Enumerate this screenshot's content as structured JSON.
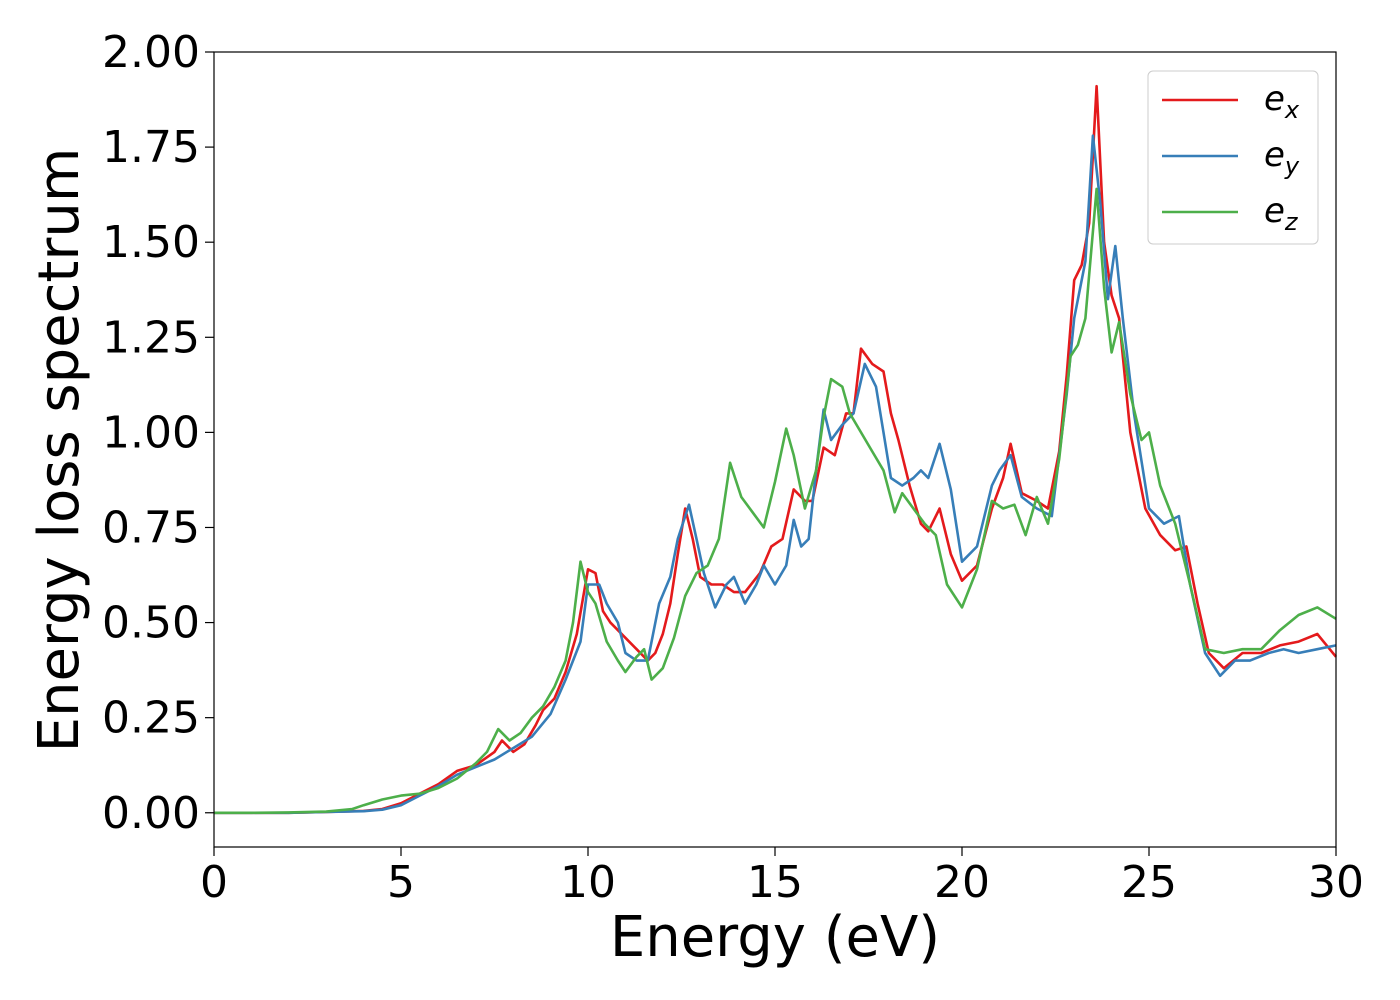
{
  "chart_data": {
    "type": "line",
    "xlabel": "Energy (eV)",
    "ylabel": "Energy loss spectrum",
    "xlim": [
      0,
      30
    ],
    "ylim": [
      -0.09,
      2.0
    ],
    "xticks": [
      "0",
      "5",
      "10",
      "15",
      "20",
      "25",
      "30"
    ],
    "yticks": [
      "0.00",
      "0.25",
      "0.50",
      "0.75",
      "1.00",
      "1.25",
      "1.50",
      "1.75",
      "2.00"
    ],
    "grid": false,
    "legend_position": "top-right",
    "series": [
      {
        "name": "e",
        "subscript": "x",
        "color": "#e41a1c",
        "points": [
          [
            0,
            0
          ],
          [
            1,
            0
          ],
          [
            2,
            0
          ],
          [
            3,
            0.002
          ],
          [
            4,
            0.005
          ],
          [
            4.5,
            0.01
          ],
          [
            5,
            0.025
          ],
          [
            5.5,
            0.05
          ],
          [
            6,
            0.075
          ],
          [
            6.5,
            0.11
          ],
          [
            7,
            0.125
          ],
          [
            7.5,
            0.16
          ],
          [
            7.7,
            0.19
          ],
          [
            8,
            0.16
          ],
          [
            8.3,
            0.18
          ],
          [
            8.6,
            0.23
          ],
          [
            8.8,
            0.27
          ],
          [
            9.1,
            0.3
          ],
          [
            9.4,
            0.37
          ],
          [
            9.7,
            0.47
          ],
          [
            10,
            0.64
          ],
          [
            10.2,
            0.63
          ],
          [
            10.4,
            0.53
          ],
          [
            10.6,
            0.5
          ],
          [
            10.8,
            0.48
          ],
          [
            11,
            0.46
          ],
          [
            11.3,
            0.43
          ],
          [
            11.6,
            0.4
          ],
          [
            11.8,
            0.42
          ],
          [
            12,
            0.47
          ],
          [
            12.2,
            0.55
          ],
          [
            12.4,
            0.68
          ],
          [
            12.6,
            0.8
          ],
          [
            12.8,
            0.72
          ],
          [
            13,
            0.62
          ],
          [
            13.3,
            0.6
          ],
          [
            13.6,
            0.6
          ],
          [
            13.9,
            0.58
          ],
          [
            14.2,
            0.58
          ],
          [
            14.6,
            0.63
          ],
          [
            14.9,
            0.7
          ],
          [
            15.2,
            0.72
          ],
          [
            15.5,
            0.85
          ],
          [
            15.8,
            0.82
          ],
          [
            16,
            0.82
          ],
          [
            16.3,
            0.96
          ],
          [
            16.6,
            0.94
          ],
          [
            16.9,
            1.05
          ],
          [
            17.1,
            1.05
          ],
          [
            17.3,
            1.22
          ],
          [
            17.6,
            1.18
          ],
          [
            17.9,
            1.16
          ],
          [
            18.1,
            1.05
          ],
          [
            18.3,
            0.98
          ],
          [
            18.6,
            0.86
          ],
          [
            18.9,
            0.76
          ],
          [
            19.1,
            0.74
          ],
          [
            19.4,
            0.8
          ],
          [
            19.7,
            0.68
          ],
          [
            20,
            0.61
          ],
          [
            20.4,
            0.65
          ],
          [
            20.8,
            0.8
          ],
          [
            21.1,
            0.88
          ],
          [
            21.3,
            0.97
          ],
          [
            21.6,
            0.84
          ],
          [
            22,
            0.82
          ],
          [
            22.3,
            0.8
          ],
          [
            22.6,
            0.95
          ],
          [
            22.8,
            1.15
          ],
          [
            23,
            1.4
          ],
          [
            23.2,
            1.44
          ],
          [
            23.4,
            1.55
          ],
          [
            23.6,
            1.91
          ],
          [
            23.8,
            1.5
          ],
          [
            24,
            1.36
          ],
          [
            24.2,
            1.3
          ],
          [
            24.5,
            1.0
          ],
          [
            24.9,
            0.8
          ],
          [
            25.3,
            0.73
          ],
          [
            25.7,
            0.69
          ],
          [
            26,
            0.7
          ],
          [
            26.3,
            0.55
          ],
          [
            26.6,
            0.42
          ],
          [
            27,
            0.38
          ],
          [
            27.5,
            0.42
          ],
          [
            28,
            0.42
          ],
          [
            28.5,
            0.44
          ],
          [
            29,
            0.45
          ],
          [
            29.5,
            0.47
          ],
          [
            30,
            0.41
          ]
        ]
      },
      {
        "name": "e",
        "subscript": "y",
        "color": "#377eb8",
        "points": [
          [
            0,
            0
          ],
          [
            1,
            0
          ],
          [
            2,
            0
          ],
          [
            3,
            0.002
          ],
          [
            4,
            0.004
          ],
          [
            4.5,
            0.008
          ],
          [
            5,
            0.02
          ],
          [
            5.5,
            0.045
          ],
          [
            6,
            0.07
          ],
          [
            6.5,
            0.1
          ],
          [
            7,
            0.12
          ],
          [
            7.5,
            0.14
          ],
          [
            8,
            0.17
          ],
          [
            8.5,
            0.2
          ],
          [
            9,
            0.26
          ],
          [
            9.4,
            0.35
          ],
          [
            9.8,
            0.45
          ],
          [
            10,
            0.6
          ],
          [
            10.3,
            0.6
          ],
          [
            10.5,
            0.55
          ],
          [
            10.8,
            0.5
          ],
          [
            11,
            0.42
          ],
          [
            11.3,
            0.4
          ],
          [
            11.6,
            0.4
          ],
          [
            11.9,
            0.55
          ],
          [
            12.2,
            0.62
          ],
          [
            12.4,
            0.72
          ],
          [
            12.7,
            0.81
          ],
          [
            12.9,
            0.72
          ],
          [
            13.1,
            0.63
          ],
          [
            13.4,
            0.54
          ],
          [
            13.7,
            0.6
          ],
          [
            13.9,
            0.62
          ],
          [
            14.2,
            0.55
          ],
          [
            14.5,
            0.6
          ],
          [
            14.7,
            0.65
          ],
          [
            15,
            0.6
          ],
          [
            15.3,
            0.65
          ],
          [
            15.5,
            0.77
          ],
          [
            15.7,
            0.7
          ],
          [
            15.9,
            0.72
          ],
          [
            16.1,
            0.9
          ],
          [
            16.3,
            1.06
          ],
          [
            16.5,
            0.98
          ],
          [
            16.8,
            1.02
          ],
          [
            17.1,
            1.05
          ],
          [
            17.4,
            1.18
          ],
          [
            17.7,
            1.12
          ],
          [
            17.9,
            1.0
          ],
          [
            18.1,
            0.88
          ],
          [
            18.4,
            0.86
          ],
          [
            18.7,
            0.88
          ],
          [
            18.9,
            0.9
          ],
          [
            19.1,
            0.88
          ],
          [
            19.4,
            0.97
          ],
          [
            19.7,
            0.85
          ],
          [
            20,
            0.66
          ],
          [
            20.4,
            0.7
          ],
          [
            20.8,
            0.86
          ],
          [
            21,
            0.9
          ],
          [
            21.3,
            0.94
          ],
          [
            21.6,
            0.83
          ],
          [
            22,
            0.8
          ],
          [
            22.4,
            0.78
          ],
          [
            22.8,
            1.1
          ],
          [
            23,
            1.3
          ],
          [
            23.3,
            1.45
          ],
          [
            23.5,
            1.78
          ],
          [
            23.7,
            1.6
          ],
          [
            23.9,
            1.35
          ],
          [
            24.1,
            1.49
          ],
          [
            24.3,
            1.3
          ],
          [
            24.6,
            1.05
          ],
          [
            25,
            0.8
          ],
          [
            25.4,
            0.76
          ],
          [
            25.8,
            0.78
          ],
          [
            26.1,
            0.6
          ],
          [
            26.5,
            0.42
          ],
          [
            26.9,
            0.36
          ],
          [
            27.3,
            0.4
          ],
          [
            27.7,
            0.4
          ],
          [
            28.2,
            0.42
          ],
          [
            28.6,
            0.43
          ],
          [
            29,
            0.42
          ],
          [
            29.5,
            0.43
          ],
          [
            30,
            0.44
          ]
        ]
      },
      {
        "name": "e",
        "subscript": "z",
        "color": "#4daf4a",
        "points": [
          [
            0,
            0
          ],
          [
            1,
            0
          ],
          [
            2,
            0.001
          ],
          [
            3,
            0.003
          ],
          [
            3.7,
            0.01
          ],
          [
            4,
            0.02
          ],
          [
            4.5,
            0.035
          ],
          [
            5,
            0.045
          ],
          [
            5.5,
            0.05
          ],
          [
            6,
            0.065
          ],
          [
            6.5,
            0.09
          ],
          [
            7,
            0.13
          ],
          [
            7.3,
            0.16
          ],
          [
            7.6,
            0.22
          ],
          [
            7.9,
            0.19
          ],
          [
            8.2,
            0.21
          ],
          [
            8.5,
            0.25
          ],
          [
            8.8,
            0.28
          ],
          [
            9.1,
            0.33
          ],
          [
            9.4,
            0.4
          ],
          [
            9.6,
            0.5
          ],
          [
            9.8,
            0.66
          ],
          [
            10,
            0.58
          ],
          [
            10.2,
            0.55
          ],
          [
            10.5,
            0.45
          ],
          [
            10.8,
            0.4
          ],
          [
            11,
            0.37
          ],
          [
            11.3,
            0.41
          ],
          [
            11.5,
            0.43
          ],
          [
            11.7,
            0.35
          ],
          [
            12,
            0.38
          ],
          [
            12.3,
            0.46
          ],
          [
            12.6,
            0.57
          ],
          [
            12.9,
            0.63
          ],
          [
            13.2,
            0.65
          ],
          [
            13.5,
            0.72
          ],
          [
            13.8,
            0.92
          ],
          [
            14.1,
            0.83
          ],
          [
            14.4,
            0.79
          ],
          [
            14.7,
            0.75
          ],
          [
            15,
            0.87
          ],
          [
            15.3,
            1.01
          ],
          [
            15.5,
            0.94
          ],
          [
            15.8,
            0.8
          ],
          [
            16.1,
            0.9
          ],
          [
            16.3,
            1.04
          ],
          [
            16.5,
            1.14
          ],
          [
            16.8,
            1.12
          ],
          [
            17,
            1.05
          ],
          [
            17.3,
            1.0
          ],
          [
            17.6,
            0.95
          ],
          [
            17.9,
            0.9
          ],
          [
            18.2,
            0.79
          ],
          [
            18.4,
            0.84
          ],
          [
            18.7,
            0.8
          ],
          [
            19,
            0.76
          ],
          [
            19.3,
            0.73
          ],
          [
            19.6,
            0.6
          ],
          [
            20,
            0.54
          ],
          [
            20.4,
            0.64
          ],
          [
            20.8,
            0.82
          ],
          [
            21.1,
            0.8
          ],
          [
            21.4,
            0.81
          ],
          [
            21.7,
            0.73
          ],
          [
            22,
            0.83
          ],
          [
            22.3,
            0.76
          ],
          [
            22.6,
            0.93
          ],
          [
            22.9,
            1.2
          ],
          [
            23.1,
            1.23
          ],
          [
            23.3,
            1.3
          ],
          [
            23.6,
            1.64
          ],
          [
            23.8,
            1.38
          ],
          [
            24,
            1.21
          ],
          [
            24.2,
            1.29
          ],
          [
            24.5,
            1.1
          ],
          [
            24.8,
            0.98
          ],
          [
            25,
            1.0
          ],
          [
            25.3,
            0.86
          ],
          [
            25.7,
            0.76
          ],
          [
            26.1,
            0.6
          ],
          [
            26.5,
            0.43
          ],
          [
            27,
            0.42
          ],
          [
            27.5,
            0.43
          ],
          [
            28,
            0.43
          ],
          [
            28.5,
            0.48
          ],
          [
            29,
            0.52
          ],
          [
            29.5,
            0.54
          ],
          [
            30,
            0.51
          ]
        ]
      }
    ]
  }
}
